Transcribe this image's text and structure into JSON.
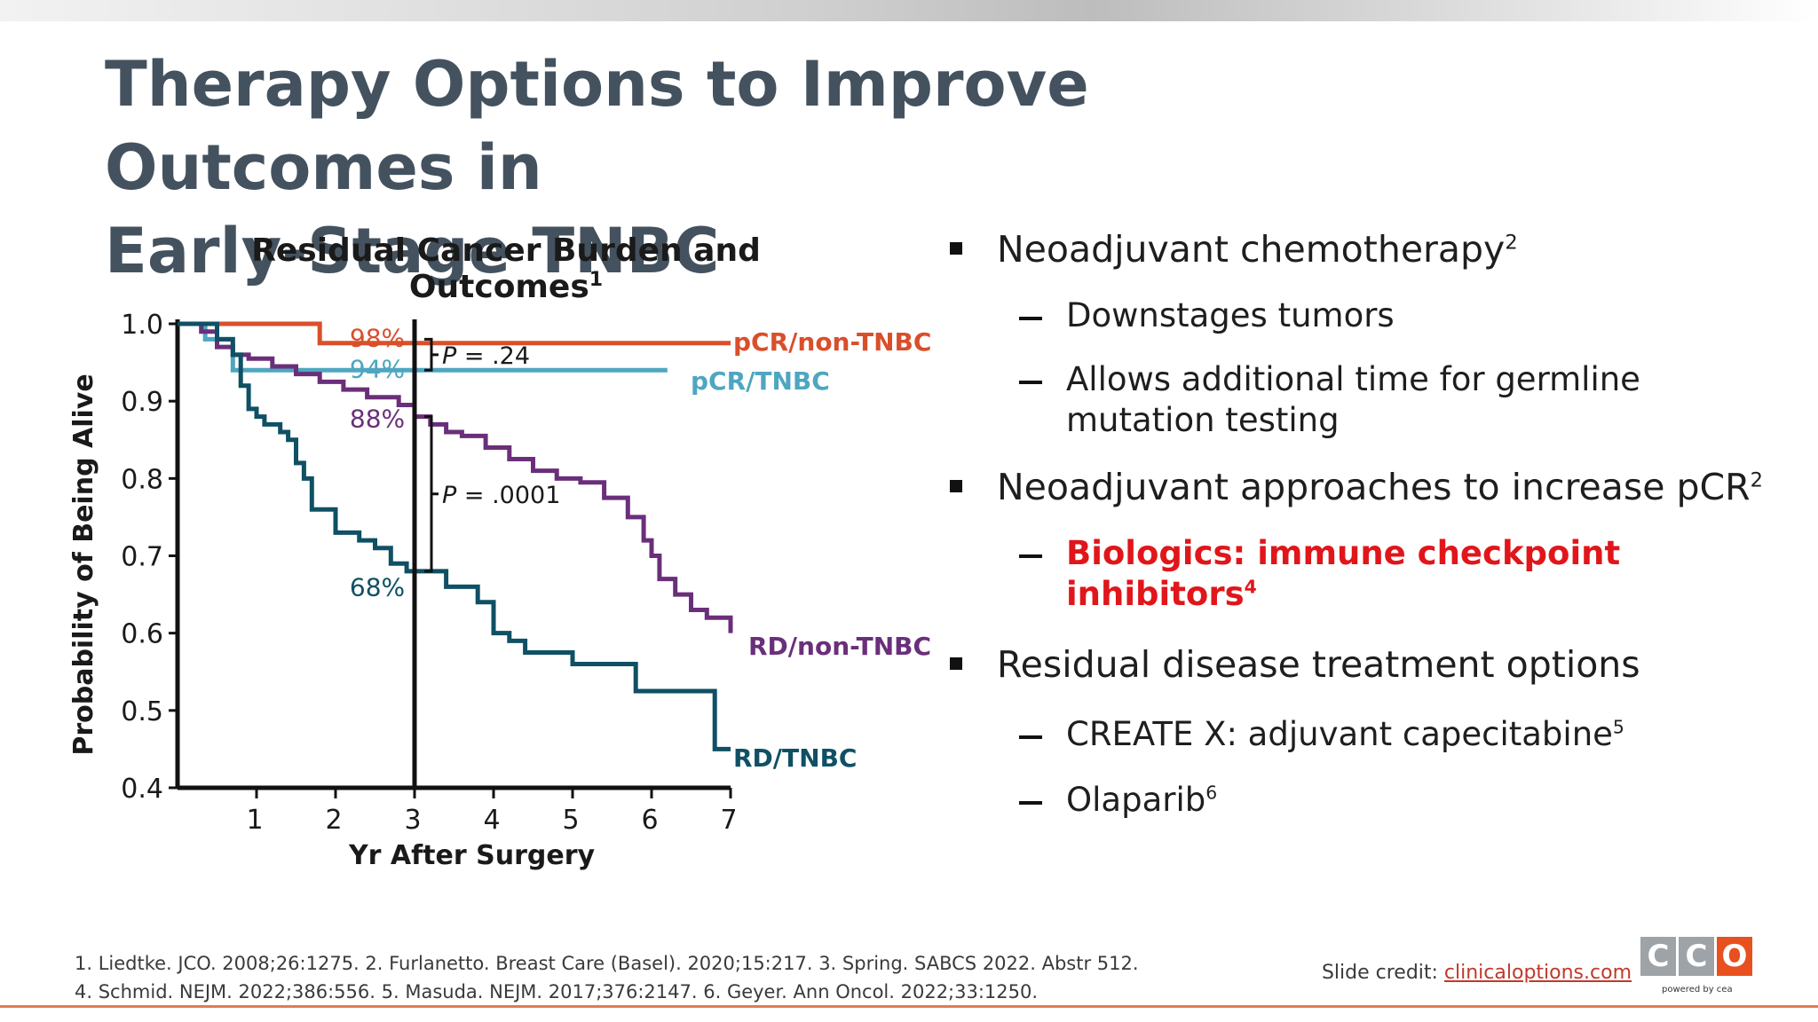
{
  "slide": {
    "title": "Therapy Options to Improve Outcomes in\nEarly-Stage TNBC"
  },
  "chart_data": {
    "type": "line",
    "title": "Residual Cancer Burden and Outcomes",
    "title_ref": "1",
    "xlabel": "Yr After Surgery",
    "ylabel": "Probability of Being Alive",
    "xlim": [
      0,
      7
    ],
    "ylim": [
      0.4,
      1.0
    ],
    "x_ticks": [
      "1",
      "2",
      "3",
      "4",
      "5",
      "6",
      "7"
    ],
    "y_ticks": [
      "1.0",
      "0.9",
      "0.8",
      "0.7",
      "0.6",
      "0.5",
      "0.4"
    ],
    "grid": false,
    "series": [
      {
        "name": "pCR/non-TNBC",
        "color": "#d94f2b",
        "points": [
          [
            0,
            1.0
          ],
          [
            1.8,
            1.0
          ],
          [
            1.8,
            0.975
          ],
          [
            7.0,
            0.975
          ]
        ]
      },
      {
        "name": "pCR/TNBC",
        "color": "#4ea6c1",
        "points": [
          [
            0,
            1.0
          ],
          [
            0.35,
            1.0
          ],
          [
            0.35,
            0.98
          ],
          [
            0.7,
            0.98
          ],
          [
            0.7,
            0.94
          ],
          [
            6.2,
            0.94
          ]
        ]
      },
      {
        "name": "RD/non-TNBC",
        "color": "#6a2f7a",
        "points": [
          [
            0,
            1.0
          ],
          [
            0.3,
            1.0
          ],
          [
            0.3,
            0.99
          ],
          [
            0.5,
            0.99
          ],
          [
            0.5,
            0.97
          ],
          [
            0.7,
            0.96
          ],
          [
            0.9,
            0.955
          ],
          [
            1.2,
            0.945
          ],
          [
            1.5,
            0.935
          ],
          [
            1.8,
            0.925
          ],
          [
            2.1,
            0.915
          ],
          [
            2.4,
            0.905
          ],
          [
            2.8,
            0.895
          ],
          [
            3.0,
            0.88
          ],
          [
            3.2,
            0.87
          ],
          [
            3.4,
            0.86
          ],
          [
            3.6,
            0.855
          ],
          [
            3.9,
            0.84
          ],
          [
            4.2,
            0.825
          ],
          [
            4.5,
            0.81
          ],
          [
            4.8,
            0.8
          ],
          [
            5.1,
            0.795
          ],
          [
            5.4,
            0.775
          ],
          [
            5.7,
            0.75
          ],
          [
            5.9,
            0.72
          ],
          [
            6.0,
            0.7
          ],
          [
            6.1,
            0.67
          ],
          [
            6.3,
            0.65
          ],
          [
            6.5,
            0.63
          ],
          [
            6.7,
            0.62
          ],
          [
            7.0,
            0.6
          ]
        ]
      },
      {
        "name": "RD/TNBC",
        "color": "#0f5064",
        "points": [
          [
            0,
            1.0
          ],
          [
            0.5,
            0.98
          ],
          [
            0.7,
            0.96
          ],
          [
            0.8,
            0.92
          ],
          [
            0.9,
            0.89
          ],
          [
            1.0,
            0.88
          ],
          [
            1.1,
            0.87
          ],
          [
            1.3,
            0.86
          ],
          [
            1.4,
            0.85
          ],
          [
            1.5,
            0.82
          ],
          [
            1.6,
            0.8
          ],
          [
            1.7,
            0.76
          ],
          [
            2.0,
            0.73
          ],
          [
            2.3,
            0.72
          ],
          [
            2.5,
            0.71
          ],
          [
            2.7,
            0.69
          ],
          [
            2.9,
            0.68
          ],
          [
            3.3,
            0.68
          ],
          [
            3.4,
            0.66
          ],
          [
            3.8,
            0.64
          ],
          [
            4.0,
            0.6
          ],
          [
            4.2,
            0.59
          ],
          [
            4.4,
            0.575
          ],
          [
            4.7,
            0.575
          ],
          [
            5.0,
            0.56
          ],
          [
            5.8,
            0.56
          ],
          [
            5.8,
            0.525
          ],
          [
            6.8,
            0.525
          ],
          [
            6.8,
            0.45
          ],
          [
            7.0,
            0.45
          ]
        ]
      }
    ],
    "annotations": [
      {
        "text": "98%",
        "x": 2.5,
        "y": 0.982,
        "color": "#d94f2b"
      },
      {
        "text": "94%",
        "x": 2.5,
        "y": 0.942,
        "color": "#4ea6c1"
      },
      {
        "text": "88%",
        "x": 2.5,
        "y": 0.878,
        "color": "#6a2f7a"
      },
      {
        "text": "68%",
        "x": 2.5,
        "y": 0.66,
        "color": "#0f5064"
      }
    ],
    "p_values": [
      {
        "text": "P = .24",
        "y_top": 0.98,
        "y_bottom": 0.94
      },
      {
        "text": "P = .0001",
        "y_top": 0.88,
        "y_bottom": 0.68
      }
    ],
    "reference_line_x": 3
  },
  "bullets": [
    {
      "level": 1,
      "text": "Neoadjuvant chemotherapy",
      "sup": "2"
    },
    {
      "level": 2,
      "text": "Downstages tumors",
      "sup": ""
    },
    {
      "level": 2,
      "text": "Allows additional time for germline mutation testing",
      "sup": ""
    },
    {
      "level": 1,
      "text": "Neoadjuvant approaches to increase pCR",
      "sup": "2"
    },
    {
      "level": 2,
      "text": "Biologics: immune checkpoint inhibitors",
      "sup": "4",
      "highlight": "#e0161b"
    },
    {
      "level": 1,
      "text": "Residual disease treatment options",
      "sup": ""
    },
    {
      "level": 2,
      "text": "CREATE X: adjuvant capecitabine",
      "sup": "5"
    },
    {
      "level": 2,
      "text": "Olaparib",
      "sup": "6"
    }
  ],
  "footer": {
    "refs_line1": "1. Liedtke. JCO. 2008;26:1275. 2. Furlanetto. Breast Care (Basel). 2020;15:217. 3. Spring. SABCS 2022. Abstr 512.",
    "refs_line2": "4. Schmid. NEJM. 2022;386:556. 5. Masuda. NEJM. 2017;376:2147. 6. Geyer. Ann Oncol. 2022;33:1250.",
    "credit_label": "Slide credit: ",
    "credit_link": "clinicaloptions.com",
    "logo_letters": [
      "C",
      "C",
      "O"
    ],
    "logo_tagline": "powered by cea",
    "logo_colors": [
      "#9ea3a8",
      "#9ea3a8",
      "#e8501f"
    ]
  }
}
